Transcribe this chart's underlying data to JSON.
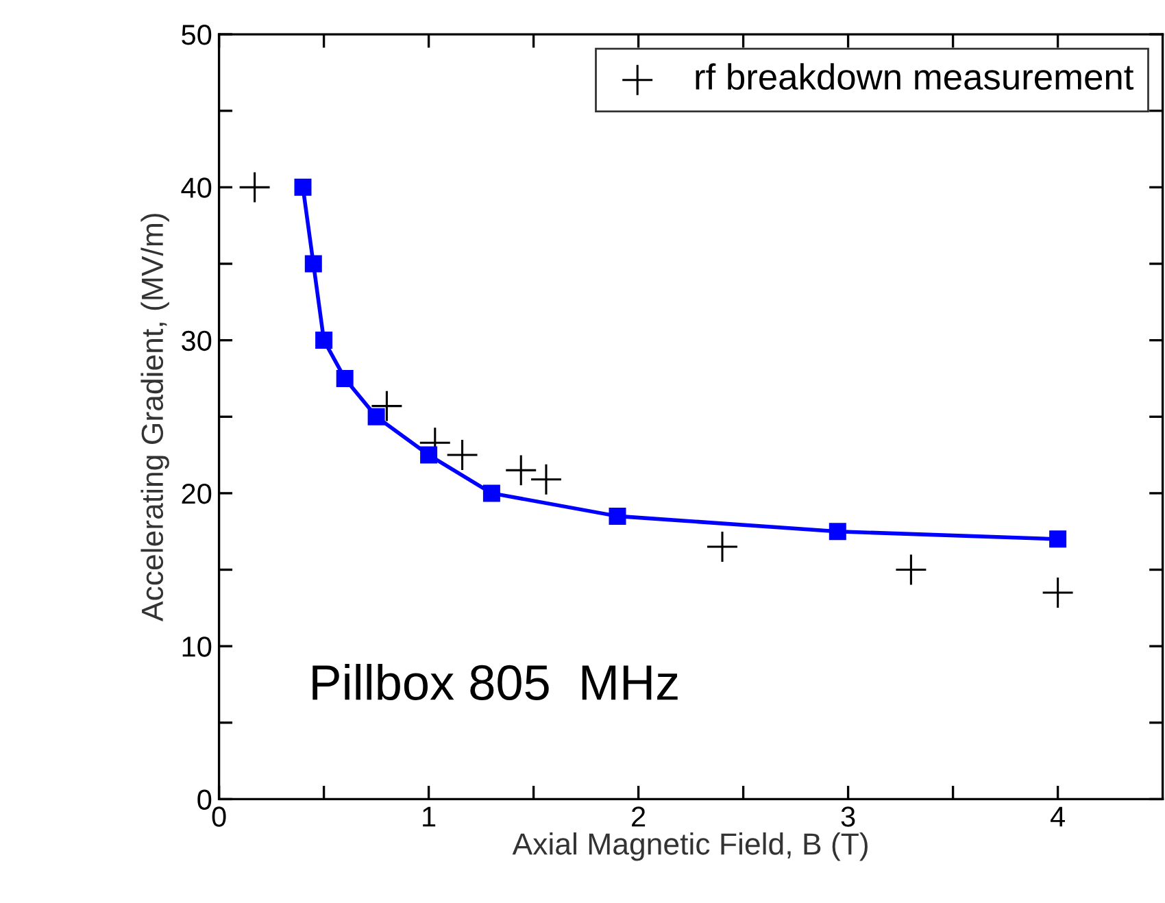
{
  "chart_data": {
    "type": "line",
    "xlabel": "Axial Magnetic Field, B (T)",
    "ylabel": "Accelerating Gradient, (MV/m)",
    "annotations": [
      "Pillbox 805  MHz"
    ],
    "series": [
      {
        "color": "#0000ff",
        "marker": "square",
        "x": [
          0.4,
          0.45,
          0.5,
          0.6,
          0.75,
          1.0,
          1.3,
          1.9,
          2.95,
          4.0
        ],
        "values": [
          40,
          35,
          30,
          27.5,
          25,
          22.5,
          20,
          18.5,
          17.5,
          17
        ]
      },
      {
        "type": "scatter",
        "name": "rf breakdown measurement",
        "color": "#000000",
        "marker": "cross",
        "x": [
          0.17,
          0.8,
          1.03,
          1.16,
          1.44,
          1.56,
          2.4,
          3.3,
          4.0
        ],
        "values": [
          40,
          25.7,
          23.3,
          22.5,
          21.5,
          20.9,
          16.5,
          15,
          13.5
        ]
      }
    ],
    "xlim": [
      0,
      4.5
    ],
    "ylim": [
      0,
      50
    ],
    "xticks": [
      0,
      {
        "value": 0.5,
        "label": null
      },
      1,
      {
        "value": 1.5,
        "label": null
      },
      2,
      {
        "value": 2.5,
        "label": null
      },
      3,
      {
        "value": 3.5,
        "label": null
      },
      4
    ],
    "yticks": [
      0,
      {
        "value": 5,
        "label": null
      },
      10,
      {
        "value": 15,
        "label": null
      },
      20,
      {
        "value": 25,
        "label": null
      },
      30,
      {
        "value": 35,
        "label": null
      },
      40,
      {
        "value": 45,
        "label": null
      },
      50
    ],
    "grid": false,
    "legend": "top right"
  }
}
